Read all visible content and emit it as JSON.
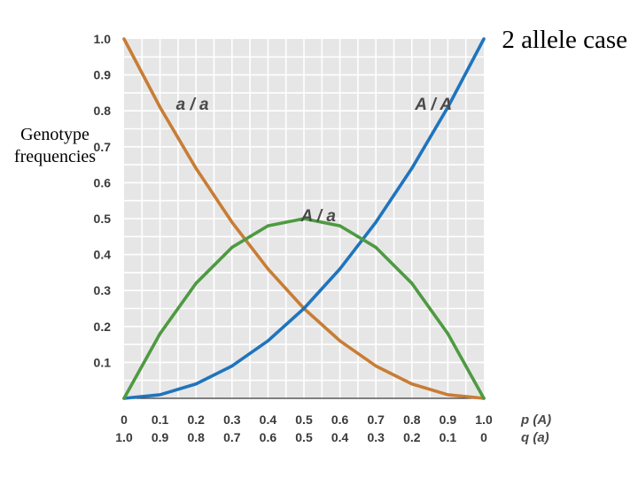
{
  "slide": {
    "title": "2 allele case",
    "ylabel_lines": [
      "Genotype",
      "frequencies"
    ]
  },
  "chart_data": {
    "type": "line",
    "title": "2 allele case",
    "ylabel": "Genotype frequencies",
    "xlabel_primary": "p (A)",
    "xlabel_secondary": "q (a)",
    "xlim": [
      0,
      1
    ],
    "ylim": [
      0,
      1
    ],
    "grid": true,
    "x_ticks_p": [
      "0",
      "0.1",
      "0.2",
      "0.3",
      "0.4",
      "0.5",
      "0.6",
      "0.7",
      "0.8",
      "0.9",
      "1.0"
    ],
    "x_ticks_q": [
      "1.0",
      "0.9",
      "0.8",
      "0.7",
      "0.6",
      "0.5",
      "0.4",
      "0.3",
      "0.2",
      "0.1",
      "0"
    ],
    "y_ticks": [
      "0.1",
      "0.2",
      "0.3",
      "0.4",
      "0.5",
      "0.6",
      "0.7",
      "0.8",
      "0.9",
      "1.0"
    ],
    "x": [
      0,
      0.1,
      0.2,
      0.3,
      0.4,
      0.5,
      0.6,
      0.7,
      0.8,
      0.9,
      1.0
    ],
    "series": [
      {
        "name": "a / a",
        "color": "#c87d34",
        "values": [
          1.0,
          0.81,
          0.64,
          0.49,
          0.36,
          0.25,
          0.16,
          0.09,
          0.04,
          0.01,
          0.0
        ]
      },
      {
        "name": "A / A",
        "color": "#1f74bd",
        "values": [
          0.0,
          0.01,
          0.04,
          0.09,
          0.16,
          0.25,
          0.36,
          0.49,
          0.64,
          0.81,
          1.0
        ]
      },
      {
        "name": "A / a",
        "color": "#4e9a41",
        "values": [
          0.0,
          0.18,
          0.32,
          0.42,
          0.48,
          0.5,
          0.48,
          0.42,
          0.32,
          0.18,
          0.0
        ]
      }
    ],
    "curve_labels": [
      {
        "text": "a / a",
        "x": 0.19,
        "y": 0.82
      },
      {
        "text": "A / A",
        "x": 0.86,
        "y": 0.82
      },
      {
        "text": "A / a",
        "x": 0.54,
        "y": 0.51
      }
    ]
  }
}
